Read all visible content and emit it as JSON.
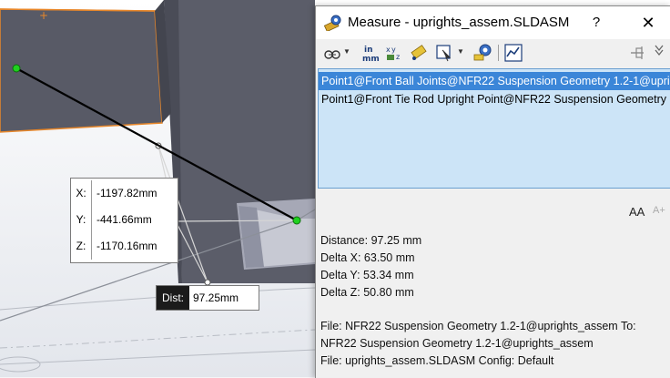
{
  "overlay": {
    "x_label": "X:",
    "x_value": "-1197.82mm",
    "y_label": "Y:",
    "y_value": "-441.66mm",
    "z_label": "Z:",
    "z_value": "-1170.16mm",
    "dist_label": "Dist:",
    "dist_value": "97.25mm"
  },
  "dialog": {
    "title": "Measure - uprights_assem.SLDASM",
    "help": "?",
    "close": "✕",
    "toolbar": [
      "arc-center-options-icon",
      "units-precision-icon",
      "xyz-relative-to-icon",
      "point-to-point-icon",
      "projection-icon",
      "history-icon",
      "sensor-icon",
      "pin-icon",
      "collapse-icon"
    ],
    "toolbar_units_label": "in mm",
    "selections": [
      "Point1@Front Ball Joints@NFR22 Suspension Geometry 1.2-1@uprig",
      "Point1@Front Tie Rod Upright Point@NFR22 Suspension Geometry"
    ],
    "aa_large": "AA",
    "aa_small": "A+",
    "results": [
      "Distance: 97.25 mm",
      "Delta X: 63.50 mm",
      "Delta Y: 53.34 mm",
      "Delta Z: 50.80 mm"
    ],
    "file_info": [
      "File: NFR22 Suspension Geometry 1.2-1@uprights_assem To:",
      "NFR22 Suspension Geometry 1.2-1@uprights_assem",
      "File: uprights_assem.SLDASM Config: Default"
    ]
  },
  "colors": {
    "model_gray": "#5b5d69",
    "edge_orange": "#e8872a",
    "point_green": "#1fd11f",
    "selection_highlight": "#3b86d8",
    "selection_bg": "#cce4f7"
  }
}
